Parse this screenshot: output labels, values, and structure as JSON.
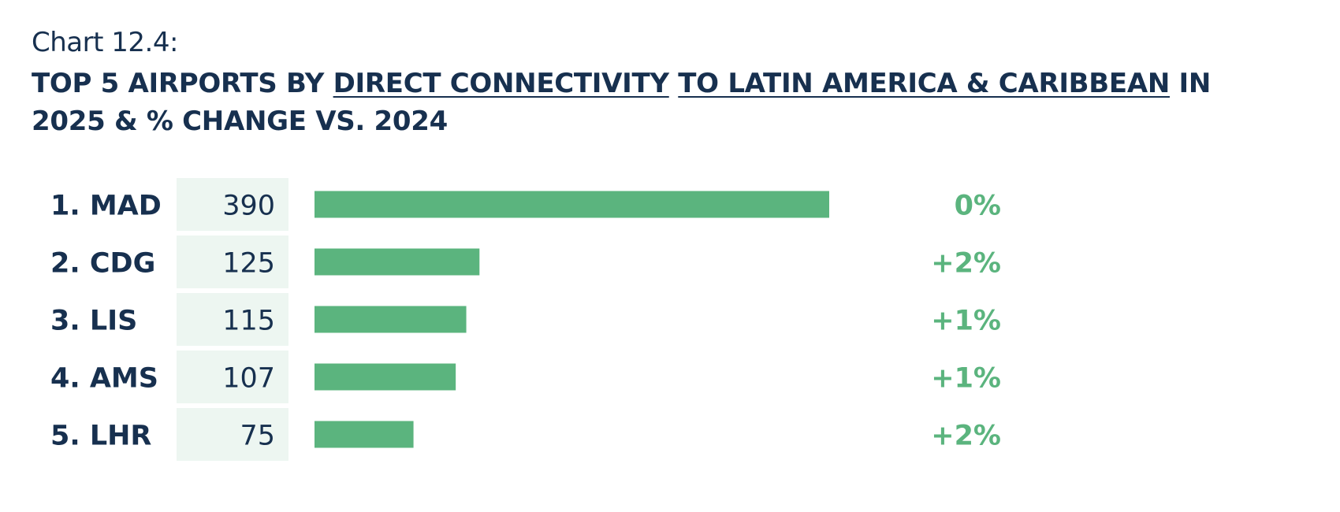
{
  "header": {
    "label": "Chart 12.4:",
    "title_parts": [
      {
        "text": "TOP 5 AIRPORTS BY ",
        "underline": false
      },
      {
        "text": "DIRECT CONNECTIVITY",
        "underline": true
      },
      {
        "text": " ",
        "underline": false
      },
      {
        "text": "TO LATIN AMERICA & CARIBBEAN",
        "underline": true
      },
      {
        "text": " IN 2025 & % CHANGE VS. 2024",
        "underline": false
      }
    ]
  },
  "colors": {
    "title": "#17304f",
    "bar": "#5bb47e",
    "value_cell": "#edf6f1",
    "change": "#5bb47e"
  },
  "chart_data": {
    "type": "bar",
    "orientation": "horizontal",
    "title": "TOP 5 AIRPORTS BY DIRECT CONNECTIVITY TO LATIN AMERICA & CARIBBEAN IN 2025 & % CHANGE VS. 2024",
    "categories": [
      "1. MAD",
      "2. CDG",
      "3. LIS",
      "4. AMS",
      "5. LHR"
    ],
    "values": [
      390,
      125,
      115,
      107,
      75
    ],
    "value_labels": [
      "390",
      "125",
      "115",
      "107",
      "75"
    ],
    "change_labels": [
      "0%",
      "+2%",
      "+1%",
      "+1%",
      "+2%"
    ],
    "xlim": [
      0,
      390
    ],
    "grid": false,
    "legend": "none"
  }
}
